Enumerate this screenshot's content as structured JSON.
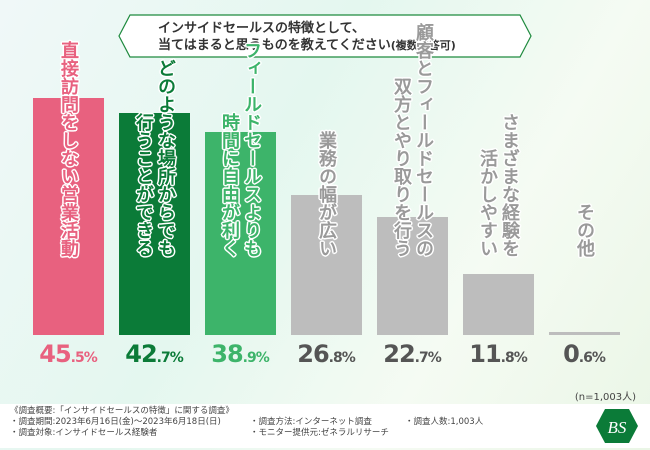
{
  "title": {
    "line1": "インサイドセールスの特徴として、",
    "line2": "当てはまると思うものを教えてください",
    "suffix": "(複数回答可)"
  },
  "chart_data": {
    "type": "bar",
    "title": "インサイドセールスの特徴として、当てはまると思うものを教えてください(複数回答可)",
    "categories": [
      "直接訪問をしない営業活動",
      "どのような場所からでも\n行うことができる",
      "フィールドセールスよりも\n時間に自由が利く",
      "業務の幅が広い",
      "顧客とフィールドセールスの\n双方とやり取りを行う",
      "さまざまな経験を\n活かしやすい",
      "その他"
    ],
    "values": [
      45.5,
      42.7,
      38.9,
      26.8,
      22.7,
      11.8,
      0.6
    ],
    "value_labels": [
      "45.5",
      "42.7",
      "38.9",
      "26.8",
      "22.7",
      "11.8",
      "0.6"
    ],
    "unit": "%",
    "colors": [
      "#e8617f",
      "#0b7b38",
      "#3db46a",
      "#bdbdbd",
      "#bdbdbd",
      "#bdbdbd",
      "#bdbdbd"
    ],
    "text_colors": [
      "#e8617f",
      "#0b7b38",
      "#3db46a",
      "#555555",
      "#555555",
      "#555555",
      "#555555"
    ],
    "ylim": [
      0,
      46
    ],
    "xlabel": "",
    "ylabel": ""
  },
  "sample": "(n=1,003人)",
  "footer": {
    "overview": "《調査概要:「インサイドセールスの特徴」に関する調査》",
    "period": "・調査期間:2023年6月16日(金)〜2023年6月18日(日)",
    "target": "・調査対象:インサイドセールス経験者",
    "method": "・調査方法:インターネット調査",
    "provider": "・モニター提供元:ゼネラルリサーチ",
    "count": "・調査人数:1,003人"
  },
  "logo": "BS"
}
